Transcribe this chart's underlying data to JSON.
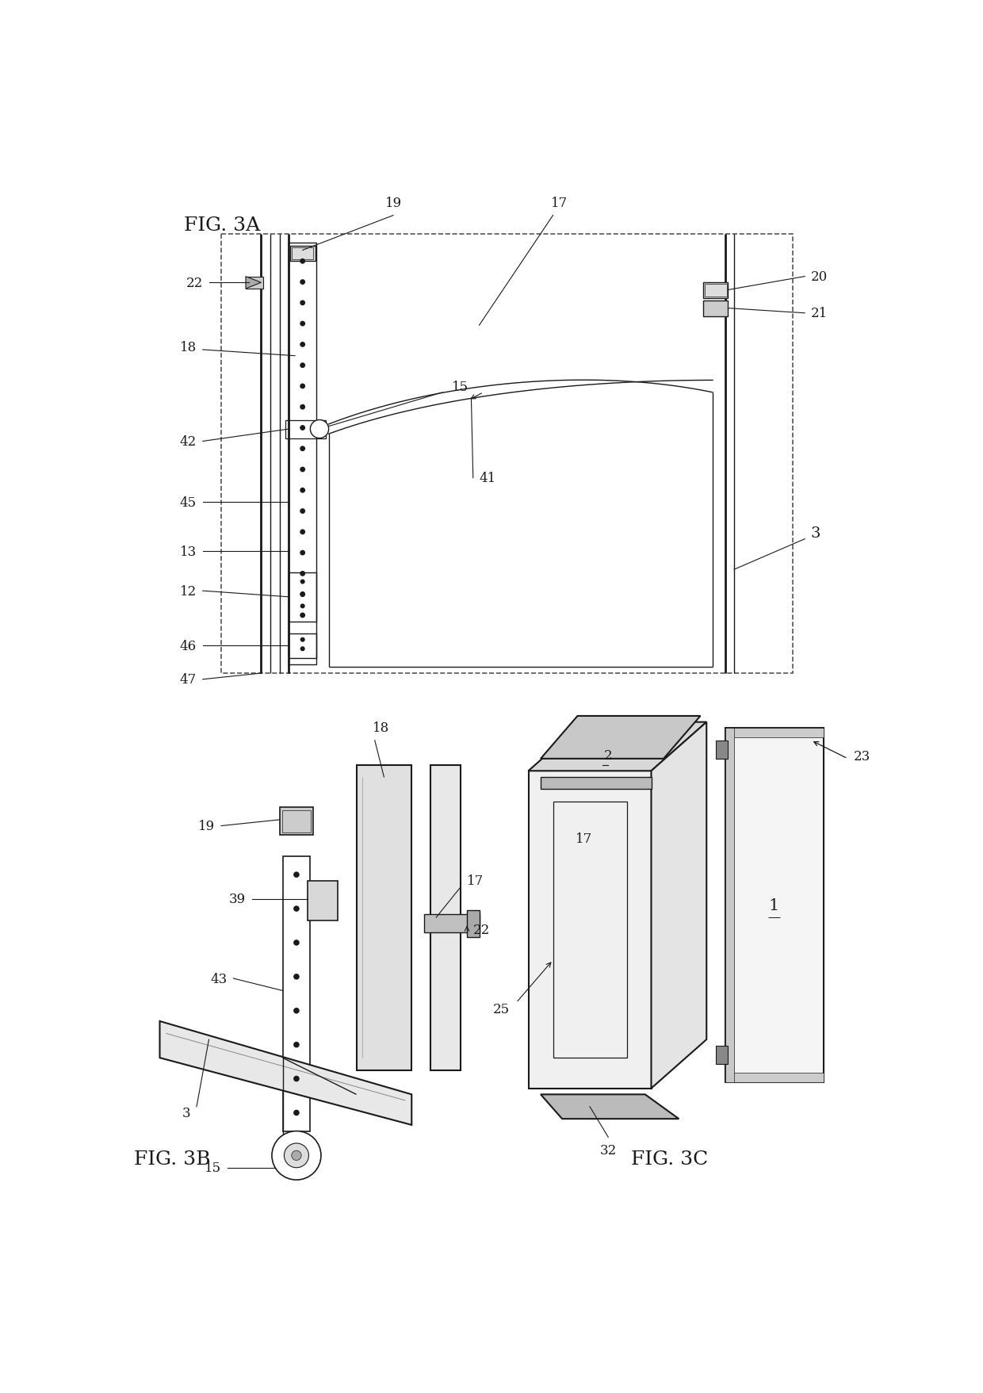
{
  "background_color": "#ffffff",
  "fig_width": 12.4,
  "fig_height": 17.58,
  "fig3a_label": "FIG. 3A",
  "fig3b_label": "FIG. 3B",
  "fig3c_label": "FIG. 3C",
  "label_fontsize": 18,
  "number_fontsize": 12,
  "line_color": "#1a1a1a",
  "dashed_color": "#555555"
}
